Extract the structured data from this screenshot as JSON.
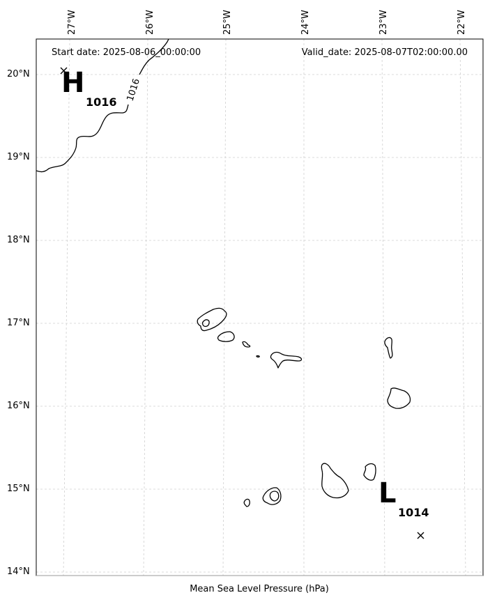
{
  "header": {
    "start_date": "Start date: 2025-08-06_00:00:00",
    "valid_date": "Valid_date: 2025-08-07T02:00:00.00"
  },
  "axes": {
    "lon_labels": [
      "27°W",
      "26°W",
      "25°W",
      "24°W",
      "23°W",
      "22°W"
    ],
    "lat_labels": [
      "20°N",
      "19°N",
      "18°N",
      "17°N",
      "16°N",
      "15°N",
      "14°N"
    ]
  },
  "pressure_centers": {
    "high": {
      "symbol": "H",
      "value": "1016",
      "lon": -26.98,
      "lat": 20.03
    },
    "low": {
      "symbol": "L",
      "value": "1014",
      "lon": -22.48,
      "lat": 14.44
    }
  },
  "isobars": [
    {
      "label": "1016"
    }
  ],
  "footer": {
    "caption": "Mean Sea Level Pressure (hPa)"
  },
  "colors": {
    "contour": "#000000",
    "gridline": "#cfcfcf",
    "frame": "#000000"
  }
}
